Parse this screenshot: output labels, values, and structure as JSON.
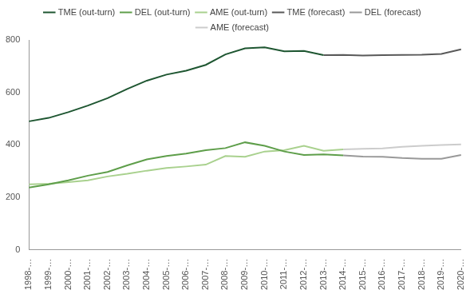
{
  "chart_data": {
    "type": "line",
    "categories": [
      "1998-…",
      "1999-…",
      "2000-…",
      "2001-…",
      "2002-…",
      "2003-…",
      "2004-…",
      "2005-…",
      "2006-…",
      "2007-…",
      "2008-…",
      "2009-…",
      "2010-…",
      "2011-…",
      "2012-…",
      "2013-…",
      "2014-…",
      "2015-…",
      "2016-…",
      "2017-…",
      "2018-…",
      "2019-…",
      "2020-…"
    ],
    "series": [
      {
        "name": "TME (out-turn)",
        "color": "#1e5631",
        "values": [
          490,
          503,
          525,
          550,
          578,
          613,
          645,
          668,
          683,
          705,
          745,
          768,
          772,
          757,
          758,
          742,
          null,
          null,
          null,
          null,
          null,
          null,
          null
        ]
      },
      {
        "name": "DEL (out-turn)",
        "color": "#5e9e4a",
        "values": [
          238,
          250,
          265,
          283,
          297,
          322,
          345,
          358,
          367,
          380,
          388,
          410,
          397,
          375,
          362,
          364,
          360,
          null,
          null,
          null,
          null,
          null,
          null
        ]
      },
      {
        "name": "AME (out-turn)",
        "color": "#a9d18e",
        "values": [
          250,
          252,
          258,
          265,
          280,
          290,
          302,
          312,
          318,
          325,
          358,
          355,
          375,
          380,
          397,
          378,
          383,
          null,
          null,
          null,
          null,
          null,
          null
        ]
      },
      {
        "name": "TME (forecast)",
        "color": "#595959",
        "values": [
          null,
          null,
          null,
          null,
          null,
          null,
          null,
          null,
          null,
          null,
          null,
          null,
          null,
          null,
          null,
          742,
          743,
          741,
          742,
          743,
          744,
          747,
          764
        ]
      },
      {
        "name": "DEL (forecast)",
        "color": "#999999",
        "values": [
          null,
          null,
          null,
          null,
          null,
          null,
          null,
          null,
          null,
          null,
          null,
          null,
          null,
          null,
          null,
          null,
          360,
          356,
          355,
          350,
          347,
          347,
          362
        ]
      },
      {
        "name": "AME (forecast)",
        "color": "#cccccc",
        "values": [
          null,
          null,
          null,
          null,
          null,
          null,
          null,
          null,
          null,
          null,
          null,
          null,
          null,
          null,
          null,
          null,
          383,
          385,
          387,
          393,
          397,
          400,
          402
        ]
      }
    ],
    "ylim": [
      0,
      800
    ],
    "yticks": [
      0,
      200,
      400,
      600,
      800
    ],
    "grid": false,
    "legend": "top",
    "marker": "none"
  }
}
